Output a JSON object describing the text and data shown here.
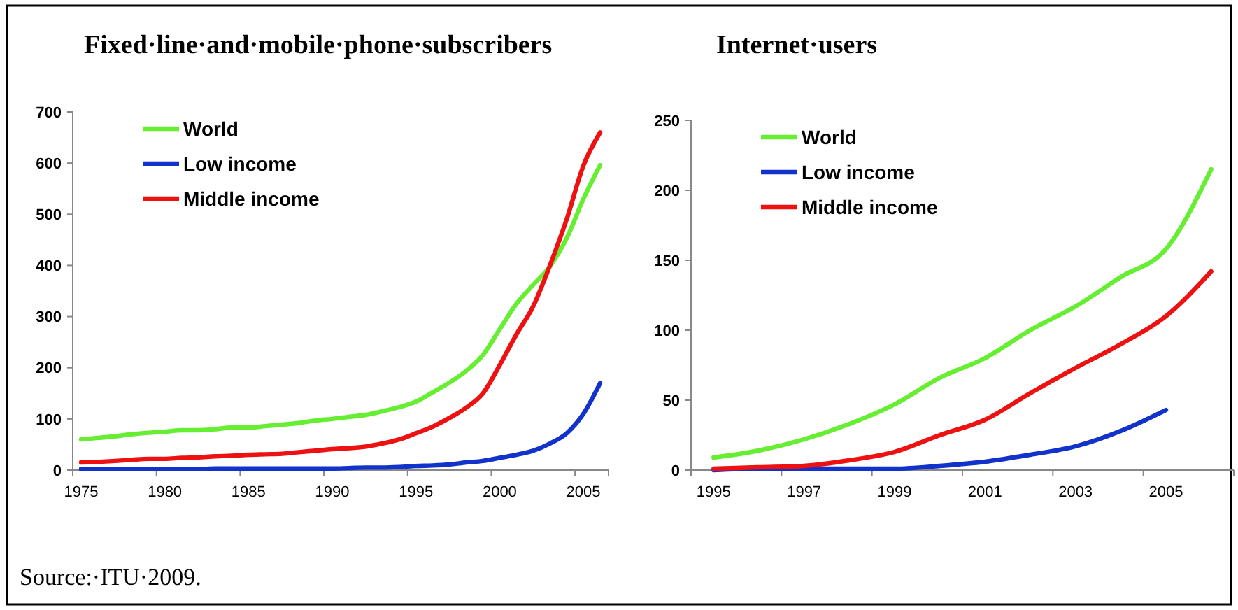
{
  "chart_data": [
    {
      "type": "line",
      "title": "Fixed·line·and·mobile·phone·subscribers",
      "categories": [
        "1975",
        null,
        null,
        null,
        null,
        "1980",
        null,
        null,
        null,
        null,
        "1985",
        null,
        null,
        null,
        null,
        "1990",
        null,
        null,
        null,
        null,
        "1995",
        null,
        null,
        null,
        null,
        "2000",
        null,
        null,
        null,
        null,
        "2005",
        null
      ],
      "series": [
        {
          "name": "World",
          "color": "#66ee33",
          "values": [
            60,
            63,
            66,
            70,
            73,
            75,
            78,
            78,
            80,
            83,
            83,
            86,
            89,
            92,
            97,
            100,
            104,
            108,
            115,
            123,
            134,
            152,
            171,
            194,
            225,
            275,
            325,
            362,
            398,
            453,
            530,
            596
          ]
        },
        {
          "name": "Low income",
          "color": "#1133cc",
          "values": [
            2,
            2,
            2,
            2,
            2,
            2,
            2,
            2,
            3,
            3,
            3,
            3,
            3,
            3,
            3,
            3,
            4,
            5,
            5,
            6,
            8,
            9,
            11,
            15,
            18,
            24,
            30,
            38,
            52,
            72,
            110,
            170
          ]
        },
        {
          "name": "Middle income",
          "color": "#ee1111",
          "values": [
            15,
            16,
            18,
            20,
            22,
            22,
            24,
            25,
            27,
            28,
            30,
            31,
            32,
            35,
            38,
            41,
            43,
            46,
            52,
            60,
            72,
            85,
            102,
            122,
            150,
            205,
            265,
            320,
            400,
            490,
            595,
            660
          ]
        }
      ],
      "ylim": [
        0,
        700
      ],
      "yticks": [
        0,
        100,
        200,
        300,
        400,
        500,
        600,
        700
      ],
      "legend": "top left",
      "grid": false,
      "annotations": [
        "Source:·ITU·2009."
      ]
    },
    {
      "type": "line",
      "title": "Internet·users",
      "categories": [
        "1995",
        null,
        "1997",
        null,
        "1999",
        null,
        "2001",
        null,
        "2003",
        null,
        "2005",
        null
      ],
      "series": [
        {
          "name": "World",
          "color": "#66ee33",
          "values": [
            9,
            14,
            22,
            33,
            47,
            66,
            80,
            100,
            117,
            138,
            158,
            215
          ]
        },
        {
          "name": "Low income",
          "color": "#1133cc",
          "values": [
            0,
            1,
            1,
            1,
            1,
            3,
            6,
            11,
            17,
            28,
            43,
            null
          ]
        },
        {
          "name": "Middle income",
          "color": "#ee1111",
          "values": [
            1,
            2,
            3,
            7,
            13,
            25,
            36,
            55,
            73,
            90,
            110,
            142
          ]
        }
      ],
      "ylim": [
        0,
        250
      ],
      "yticks": [
        0,
        50,
        100,
        150,
        200,
        250
      ],
      "legend": "top left",
      "grid": false
    }
  ]
}
